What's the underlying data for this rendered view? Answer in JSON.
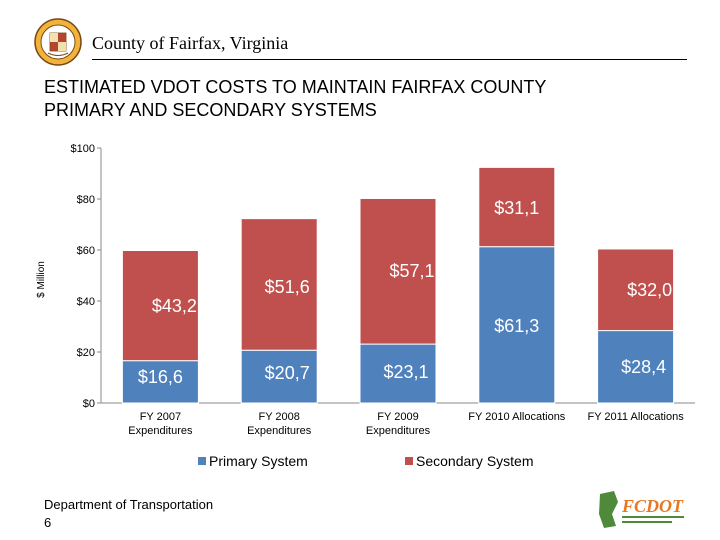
{
  "header": {
    "title": "County of Fairfax, Virginia"
  },
  "slide": {
    "title_line1": "ESTIMATED VDOT COSTS TO MAINTAIN FAIRFAX COUNTY",
    "title_line2": "PRIMARY AND SECONDARY SYSTEMS"
  },
  "footer": {
    "department": "Department of Transportation",
    "page": "6"
  },
  "logo": {
    "text": "FCDOT"
  },
  "colors": {
    "primary": "#4F81BD",
    "secondary": "#C0504D",
    "brand_orange": "#E87722",
    "brand_green": "#4E8A3A"
  },
  "chart_data": {
    "type": "bar",
    "stacked": true,
    "categories": [
      [
        "FY 2007",
        "Expenditures"
      ],
      [
        "FY 2008",
        "Expenditures"
      ],
      [
        "FY 2009",
        "Expenditures"
      ],
      [
        "FY 2010 Allocations"
      ],
      [
        "FY 2011 Allocations"
      ]
    ],
    "series": [
      {
        "name": "Primary System",
        "color": "#4F81BD",
        "values": [
          16.6,
          20.7,
          23.1,
          61.3,
          28.4
        ],
        "labels": [
          "$16,6",
          "$20,7",
          "$23,1",
          "$61,3",
          "$28,4"
        ]
      },
      {
        "name": "Secondary System",
        "color": "#C0504D",
        "values": [
          43.2,
          51.6,
          57.1,
          31.1,
          32.0
        ],
        "labels": [
          "$43,2",
          "$51,6",
          "$57,1",
          "$31,1",
          "$32,0"
        ]
      }
    ],
    "ylabel": "$ Million",
    "yticks": [
      "$0",
      "$20",
      "$40",
      "$60",
      "$80",
      "$100"
    ],
    "ylim": [
      0,
      100
    ],
    "grid": false,
    "legend": "bottom"
  }
}
